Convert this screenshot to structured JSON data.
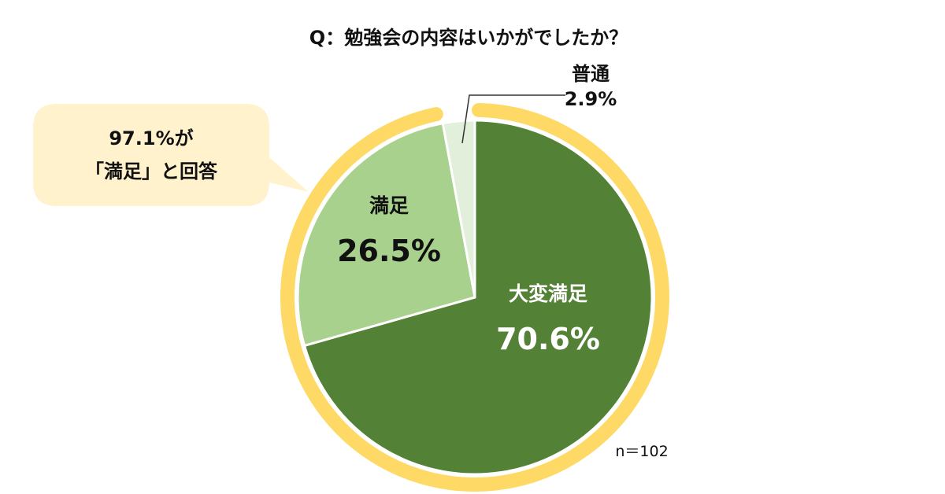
{
  "chart_data": {
    "type": "pie",
    "title": "Q：勉強会の内容はいかがでしたか？",
    "slices": [
      {
        "label": "大変満足",
        "value": 70.6,
        "value_label": "70.6%",
        "color": "#538135",
        "label_color": "#ffffff"
      },
      {
        "label": "満足",
        "value": 26.5,
        "value_label": "26.5%",
        "color": "#a9d18e",
        "label_color": "#111111"
      },
      {
        "label": "普通",
        "value": 2.9,
        "value_label": "2.9%",
        "color": "#e2efda",
        "label_color": "#111111"
      }
    ],
    "n_note": "n＝102",
    "callout": {
      "line1": "97.1%が",
      "line2": "「満足」と回答"
    },
    "highlight_ring_color": "#ffd966",
    "callout_color": "#fff2cc"
  }
}
